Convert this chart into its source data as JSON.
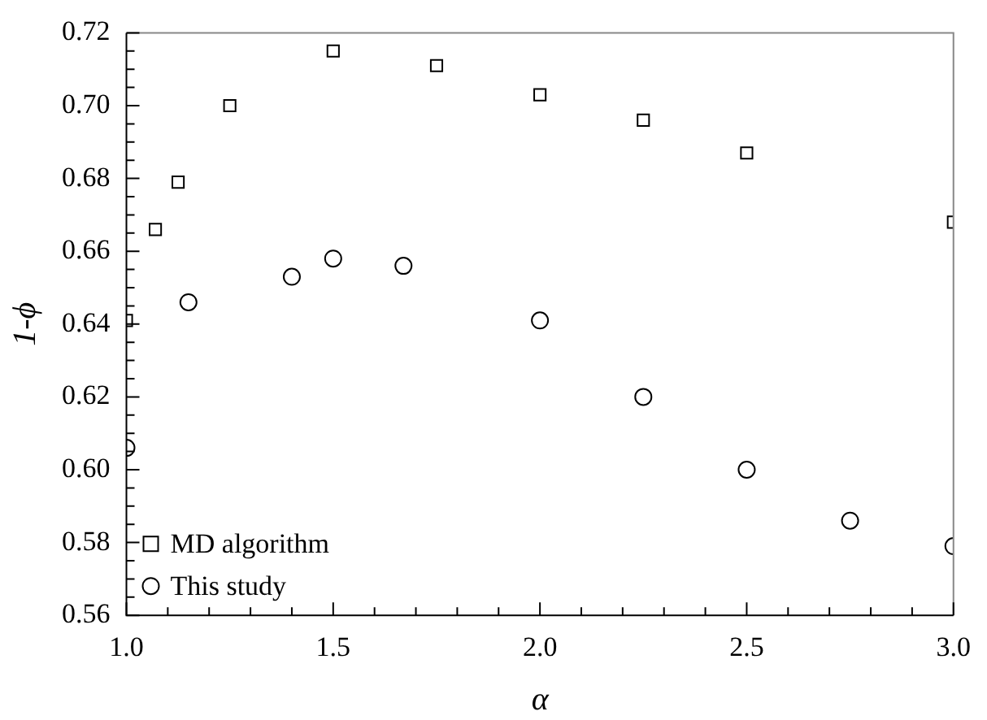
{
  "chart_data": {
    "type": "scatter",
    "xlabel": "α",
    "ylabel": "1-ϕ",
    "xlim": [
      1.0,
      3.0
    ],
    "xticks": [
      {
        "value": 1.0,
        "label": "1.0"
      },
      {
        "value": 1.1,
        "label": null
      },
      {
        "value": 1.2,
        "label": null
      },
      {
        "value": 1.3,
        "label": null
      },
      {
        "value": 1.4,
        "label": null
      },
      {
        "value": 1.5,
        "label": "1.5"
      },
      {
        "value": 1.6,
        "label": null
      },
      {
        "value": 1.7,
        "label": null
      },
      {
        "value": 1.8,
        "label": null
      },
      {
        "value": 1.9,
        "label": null
      },
      {
        "value": 2.0,
        "label": "2.0"
      },
      {
        "value": 2.1,
        "label": null
      },
      {
        "value": 2.2,
        "label": null
      },
      {
        "value": 2.3,
        "label": null
      },
      {
        "value": 2.4,
        "label": null
      },
      {
        "value": 2.5,
        "label": "2.5"
      },
      {
        "value": 2.6,
        "label": null
      },
      {
        "value": 2.7,
        "label": null
      },
      {
        "value": 2.8,
        "label": null
      },
      {
        "value": 2.9,
        "label": null
      },
      {
        "value": 3.0,
        "label": "3.0"
      }
    ],
    "ylim": [
      0.56,
      0.72
    ],
    "yticks": [
      {
        "value": 0.56,
        "label": "0.56"
      },
      {
        "value": 0.565,
        "label": null
      },
      {
        "value": 0.57,
        "label": null
      },
      {
        "value": 0.575,
        "label": null
      },
      {
        "value": 0.58,
        "label": "0.58"
      },
      {
        "value": 0.585,
        "label": null
      },
      {
        "value": 0.59,
        "label": null
      },
      {
        "value": 0.595,
        "label": null
      },
      {
        "value": 0.6,
        "label": "0.60"
      },
      {
        "value": 0.605,
        "label": null
      },
      {
        "value": 0.61,
        "label": null
      },
      {
        "value": 0.615,
        "label": null
      },
      {
        "value": 0.62,
        "label": "0.62"
      },
      {
        "value": 0.625,
        "label": null
      },
      {
        "value": 0.63,
        "label": null
      },
      {
        "value": 0.635,
        "label": null
      },
      {
        "value": 0.64,
        "label": "0.64"
      },
      {
        "value": 0.645,
        "label": null
      },
      {
        "value": 0.65,
        "label": null
      },
      {
        "value": 0.655,
        "label": null
      },
      {
        "value": 0.66,
        "label": "0.66"
      },
      {
        "value": 0.665,
        "label": null
      },
      {
        "value": 0.67,
        "label": null
      },
      {
        "value": 0.675,
        "label": null
      },
      {
        "value": 0.68,
        "label": "0.68"
      },
      {
        "value": 0.685,
        "label": null
      },
      {
        "value": 0.69,
        "label": null
      },
      {
        "value": 0.695,
        "label": null
      },
      {
        "value": 0.7,
        "label": "0.70"
      },
      {
        "value": 0.705,
        "label": null
      },
      {
        "value": 0.71,
        "label": null
      },
      {
        "value": 0.715,
        "label": null
      },
      {
        "value": 0.72,
        "label": "0.72"
      }
    ],
    "grid": false,
    "legend": "bottom left",
    "series": [
      {
        "name": "MD algorithm",
        "color": "#000000",
        "marker": "square",
        "x": [
          1.0,
          1.07,
          1.125,
          1.25,
          1.5,
          1.75,
          2.0,
          2.25,
          2.5,
          3.0
        ],
        "values": [
          0.641,
          0.666,
          0.679,
          0.7,
          0.715,
          0.711,
          0.703,
          0.696,
          0.687,
          0.668
        ]
      },
      {
        "name": "This study",
        "color": "#000000",
        "marker": "circle",
        "x": [
          1.0,
          1.15,
          1.4,
          1.5,
          1.67,
          2.0,
          2.25,
          2.5,
          2.75,
          3.0
        ],
        "values": [
          0.606,
          0.646,
          0.653,
          0.658,
          0.656,
          0.641,
          0.62,
          0.6,
          0.586,
          0.579
        ]
      }
    ]
  }
}
